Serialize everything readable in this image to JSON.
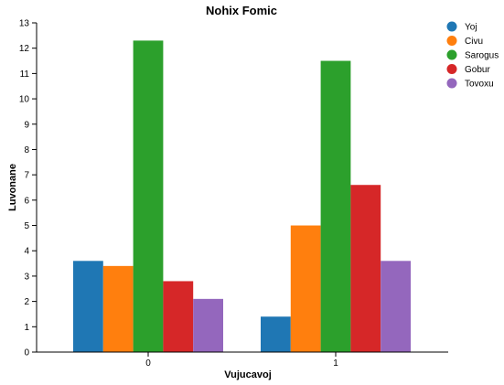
{
  "chart_data": {
    "type": "bar",
    "title": "Nohix Fomic",
    "xlabel": "Vujucavoj",
    "ylabel": "Luvonane",
    "categories": [
      "0",
      "1"
    ],
    "ylim": [
      0,
      13
    ],
    "yticks": [
      0,
      1,
      2,
      3,
      4,
      5,
      6,
      7,
      8,
      9,
      10,
      11,
      12,
      13
    ],
    "grid": false,
    "legend_position": "top-right",
    "series": [
      {
        "name": "Yoj",
        "color": "#1f77b4",
        "values": [
          3.6,
          1.4
        ]
      },
      {
        "name": "Civu",
        "color": "#ff7f0e",
        "values": [
          3.4,
          5.0
        ]
      },
      {
        "name": "Sarogus",
        "color": "#2ca02c",
        "values": [
          12.3,
          11.5
        ]
      },
      {
        "name": "Gobur",
        "color": "#d62728",
        "values": [
          2.8,
          6.6
        ]
      },
      {
        "name": "Tovoxu",
        "color": "#9467bd",
        "values": [
          2.1,
          3.6
        ]
      }
    ]
  }
}
